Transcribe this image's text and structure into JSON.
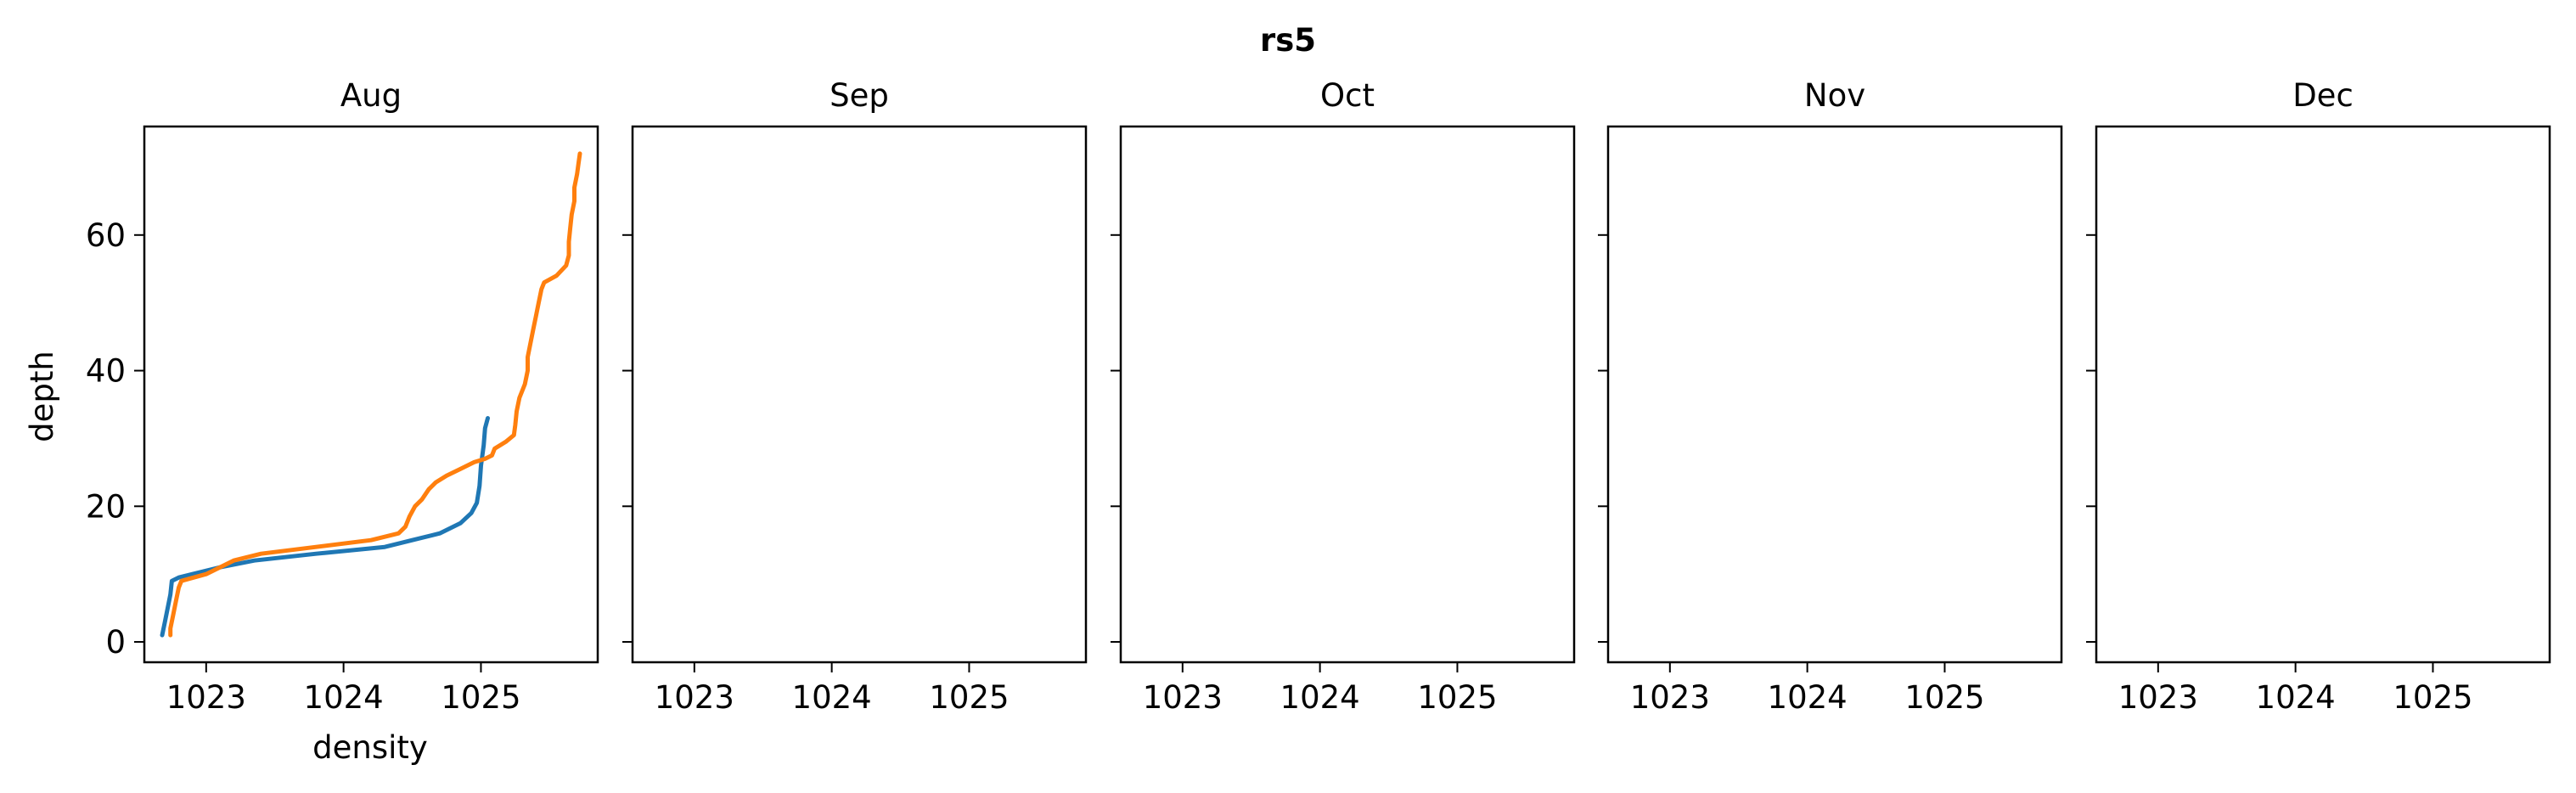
{
  "chart_data": {
    "type": "line",
    "title": "rs5",
    "xlabel": "density",
    "ylabel": "depth",
    "xlim": [
      1022.55,
      1025.85
    ],
    "ylim": [
      76,
      -3
    ],
    "y_inverted": true,
    "grid": false,
    "xticks": [
      "1023",
      "1024",
      "1025"
    ],
    "yticks": [
      "0",
      "20",
      "40",
      "60"
    ],
    "shared_y": true,
    "colors": [
      "#1f77b4",
      "#ff7f0e"
    ],
    "panels": [
      {
        "title": "Aug",
        "series": [
          {
            "color": "#1f77b4",
            "points": [
              [
                1022.68,
                1
              ],
              [
                1022.7,
                3
              ],
              [
                1022.72,
                5
              ],
              [
                1022.74,
                7
              ],
              [
                1022.75,
                9
              ],
              [
                1022.8,
                9.5
              ],
              [
                1022.9,
                10
              ],
              [
                1023.1,
                11
              ],
              [
                1023.35,
                12
              ],
              [
                1023.8,
                13
              ],
              [
                1024.3,
                14
              ],
              [
                1024.5,
                15
              ],
              [
                1024.7,
                16
              ],
              [
                1024.85,
                17.5
              ],
              [
                1024.93,
                19
              ],
              [
                1024.97,
                20.5
              ],
              [
                1024.99,
                23
              ],
              [
                1025.0,
                26
              ],
              [
                1025.02,
                29
              ],
              [
                1025.03,
                31.5
              ],
              [
                1025.05,
                33
              ]
            ]
          },
          {
            "color": "#ff7f0e",
            "points": [
              [
                1022.74,
                1
              ],
              [
                1022.74,
                2
              ],
              [
                1022.76,
                4
              ],
              [
                1022.78,
                6
              ],
              [
                1022.8,
                8
              ],
              [
                1022.82,
                9
              ],
              [
                1023.0,
                10
              ],
              [
                1023.05,
                10.5
              ],
              [
                1023.1,
                11
              ],
              [
                1023.2,
                12
              ],
              [
                1023.4,
                13
              ],
              [
                1023.8,
                14
              ],
              [
                1024.2,
                15
              ],
              [
                1024.4,
                16
              ],
              [
                1024.45,
                17
              ],
              [
                1024.48,
                18.5
              ],
              [
                1024.52,
                20
              ],
              [
                1024.57,
                21
              ],
              [
                1024.62,
                22.5
              ],
              [
                1024.67,
                23.5
              ],
              [
                1024.75,
                24.5
              ],
              [
                1024.85,
                25.5
              ],
              [
                1024.95,
                26.5
              ],
              [
                1025.03,
                27
              ],
              [
                1025.08,
                27.5
              ],
              [
                1025.1,
                28.5
              ],
              [
                1025.18,
                29.5
              ],
              [
                1025.24,
                30.5
              ],
              [
                1025.25,
                32
              ],
              [
                1025.26,
                34
              ],
              [
                1025.28,
                36
              ],
              [
                1025.32,
                38
              ],
              [
                1025.34,
                40
              ],
              [
                1025.34,
                42
              ],
              [
                1025.36,
                44
              ],
              [
                1025.38,
                46
              ],
              [
                1025.4,
                48
              ],
              [
                1025.42,
                50
              ],
              [
                1025.44,
                52
              ],
              [
                1025.46,
                53
              ],
              [
                1025.55,
                54
              ],
              [
                1025.62,
                55.5
              ],
              [
                1025.64,
                57
              ],
              [
                1025.64,
                59
              ],
              [
                1025.65,
                61
              ],
              [
                1025.66,
                63
              ],
              [
                1025.68,
                65
              ],
              [
                1025.68,
                67
              ],
              [
                1025.7,
                69
              ],
              [
                1025.71,
                70.5
              ],
              [
                1025.72,
                72
              ]
            ]
          }
        ]
      },
      {
        "title": "Sep",
        "series": []
      },
      {
        "title": "Oct",
        "series": []
      },
      {
        "title": "Nov",
        "series": []
      },
      {
        "title": "Dec",
        "series": []
      }
    ]
  }
}
